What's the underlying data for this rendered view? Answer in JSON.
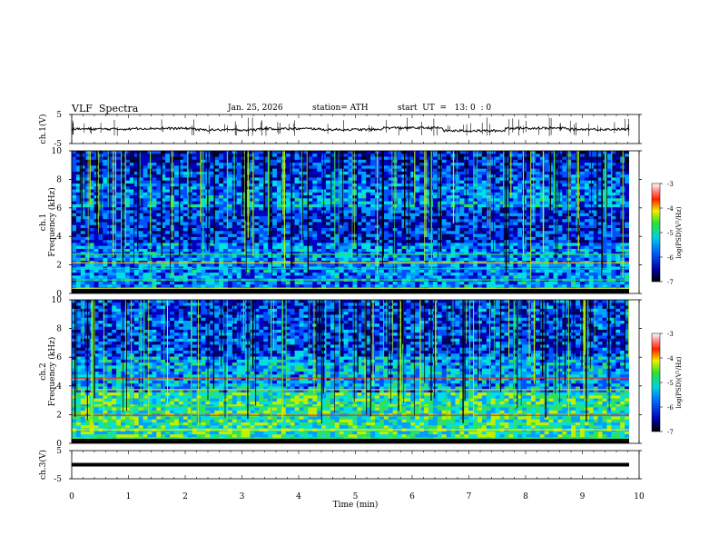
{
  "header": {
    "title": "VLF  Spectra",
    "date": "Jan. 25, 2026",
    "station": "station= ATH",
    "start": "start  UT  =   13: 0  : 0"
  },
  "chart_data": [
    {
      "type": "line",
      "panel": "ch.1(V)",
      "ylabel": "ch.1(V)",
      "ylim": [
        -5,
        5
      ],
      "yticks": [
        "5",
        "-5"
      ],
      "series": [
        {
          "values": [
            0,
            0.2,
            -0.3,
            0.1,
            -0.2,
            0.4,
            -0.6,
            0.3,
            -0.1,
            0.0
          ]
        }
      ]
    },
    {
      "type": "heatmap",
      "panel": "ch.1 spectrogram",
      "ylabel": "ch.1  Frequency  (kHz)",
      "ylim": [
        0,
        10
      ],
      "yticks": [
        "10",
        "8",
        "6",
        "4",
        "2",
        "0"
      ],
      "colorbar": {
        "label": "log(PSD)(V²/Hz)",
        "range": [
          -7,
          -3
        ],
        "ticks": [
          "-3",
          "-4",
          "-5",
          "-6",
          "-7"
        ]
      }
    },
    {
      "type": "heatmap",
      "panel": "ch.2 spectrogram",
      "ylabel": "ch.2  Frequency  (kHz)",
      "ylim": [
        0,
        10
      ],
      "yticks": [
        "10",
        "8",
        "6",
        "4",
        "2",
        "0"
      ],
      "colorbar": {
        "label": "log(PSD)(V²/Hz)",
        "range": [
          -7,
          -3
        ],
        "ticks": [
          "-3",
          "-4",
          "-5",
          "-6",
          "-7"
        ]
      }
    },
    {
      "type": "line",
      "panel": "ch.3(V)",
      "ylabel": "ch.3(V)",
      "ylim": [
        -5,
        5
      ],
      "yticks": [
        "5",
        "-5"
      ],
      "series": [
        {
          "values": [
            0,
            0,
            0,
            0,
            0,
            0,
            0,
            0,
            0,
            0
          ]
        }
      ]
    }
  ],
  "xaxis": {
    "label": "Time  (min)",
    "xlim": [
      0,
      10
    ],
    "ticks": [
      "0",
      "1",
      "2",
      "3",
      "4",
      "5",
      "6",
      "7",
      "8",
      "9",
      "10"
    ]
  }
}
